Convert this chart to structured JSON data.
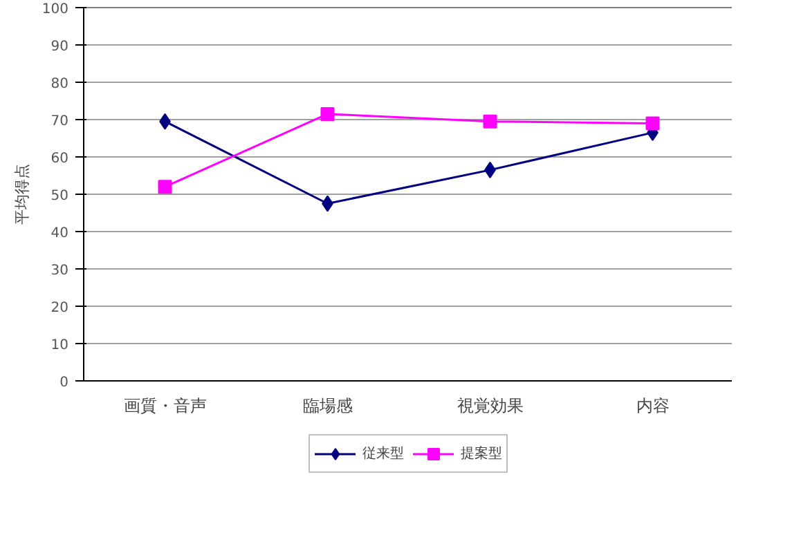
{
  "chart_data": {
    "type": "line",
    "ylabel": "平均得点",
    "categories": [
      "画質・音声",
      "臨場感",
      "視覚効果",
      "内容"
    ],
    "series": [
      {
        "name": "従来型",
        "color": "#000080",
        "values": [
          69.5,
          47.5,
          56.5,
          66.5
        ],
        "marker": "diamond"
      },
      {
        "name": "提案型",
        "color": "#ff00ff",
        "values": [
          52,
          71.5,
          69.5,
          69
        ],
        "marker": "square"
      }
    ],
    "ylim": [
      0,
      100
    ],
    "yticks": [
      0,
      10,
      20,
      30,
      40,
      50,
      60,
      70,
      80,
      90,
      100
    ],
    "grid": "y",
    "legend": "bottom"
  }
}
